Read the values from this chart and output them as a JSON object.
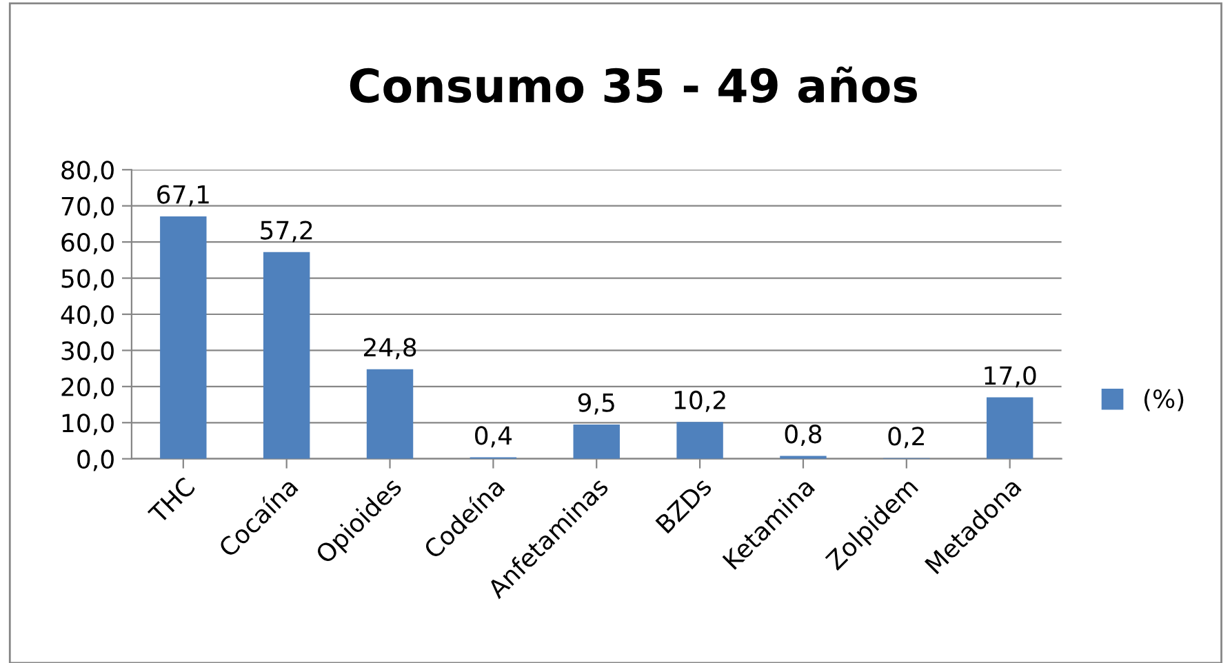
{
  "chart_data": {
    "type": "bar",
    "title": "Consumo 35 - 49 años",
    "categories": [
      "THC",
      "Cocaína",
      "Opioides",
      "Codeína",
      "Anfetaminas",
      "BZDs",
      "Ketamina",
      "Zolpidem",
      "Metadona"
    ],
    "series": [
      {
        "name": "(%)",
        "color": "#4f81bd",
        "values": [
          67.1,
          57.2,
          24.8,
          0.4,
          9.5,
          10.2,
          0.8,
          0.2,
          17.0
        ],
        "value_labels": [
          "67,1",
          "57,2",
          "24,8",
          "0,4",
          "9,5",
          "10,2",
          "0,8",
          "0,2",
          "17,0"
        ]
      }
    ],
    "ylim": [
      0,
      80
    ],
    "yticks": [
      {
        "value": 0,
        "label": "0,0"
      },
      {
        "value": 10,
        "label": "10,0"
      },
      {
        "value": 20,
        "label": "20,0"
      },
      {
        "value": 30,
        "label": "30,0"
      },
      {
        "value": 40,
        "label": "40,0"
      },
      {
        "value": 50,
        "label": "50,0"
      },
      {
        "value": 60,
        "label": "60,0"
      },
      {
        "value": 70,
        "label": "70,0"
      },
      {
        "value": 80,
        "label": "80,0"
      }
    ],
    "grid": "y",
    "legend": "right"
  }
}
